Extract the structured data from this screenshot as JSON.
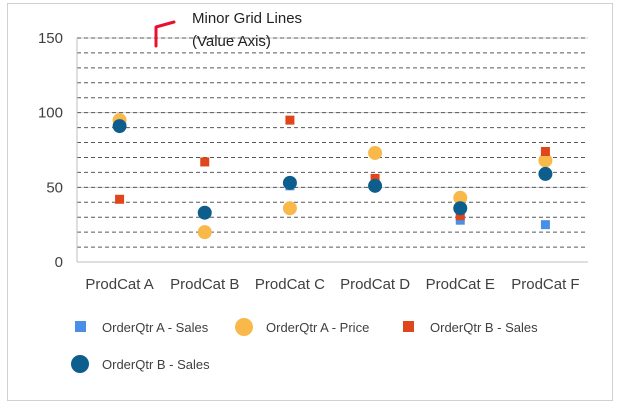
{
  "chart_data": {
    "type": "scatter",
    "categories": [
      "ProdCat A",
      "ProdCat B",
      "ProdCat C",
      "ProdCat D",
      "ProdCat E",
      "ProdCat F"
    ],
    "ylim": [
      0,
      150
    ],
    "yticks": [
      0,
      50,
      100,
      150
    ],
    "minor_grid_step": 10,
    "grid": "minor dashed (value axis)",
    "legend_position": "bottom",
    "series": [
      {
        "name": "OrderQtr A - Sales",
        "marker": "square",
        "color": "#4a8fe7",
        "values": [
          null,
          null,
          51,
          null,
          28,
          25
        ]
      },
      {
        "name": "OrderQtr A - Price",
        "marker": "circle",
        "color": "#f8b94a",
        "values": [
          95,
          20,
          36,
          73,
          43,
          68
        ]
      },
      {
        "name": "OrderQtr B - Sales",
        "marker": "square",
        "color": "#e0461b",
        "values": [
          42,
          67,
          95,
          56,
          31,
          74
        ]
      },
      {
        "name": "OrderQtr B - Sales",
        "marker": "circle",
        "color": "#0d5e8d",
        "values": [
          91,
          33,
          53,
          51,
          36,
          59
        ]
      }
    ],
    "annotation": {
      "line1": "Minor Grid Lines",
      "line2": "(Value Axis)",
      "color": "#e8112d"
    }
  }
}
